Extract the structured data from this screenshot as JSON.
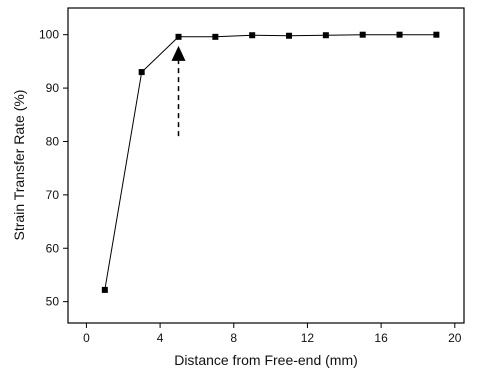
{
  "chart_data": {
    "type": "line",
    "title": "",
    "xlabel": "Distance from Free-end (mm)",
    "ylabel": "Strain Transfer Rate (%)",
    "xlim": [
      -1,
      20.5
    ],
    "ylim": [
      46,
      105
    ],
    "x_ticks": [
      0,
      4,
      8,
      12,
      16,
      20
    ],
    "y_ticks": [
      50,
      60,
      70,
      80,
      90,
      100
    ],
    "grid": false,
    "legend": "none",
    "series": [
      {
        "x": [
          1,
          3,
          5,
          7,
          9,
          11,
          13,
          15,
          17,
          19
        ],
        "y": [
          52.2,
          93.0,
          99.6,
          99.6,
          99.9,
          99.8,
          99.9,
          100.0,
          100.0,
          100.0
        ],
        "marker": "square",
        "color": "#000000"
      }
    ],
    "annotations": [
      {
        "type": "arrow",
        "style": "dashed",
        "at_x": 5,
        "points_to_y": 99.6,
        "from_y": 81
      }
    ]
  }
}
